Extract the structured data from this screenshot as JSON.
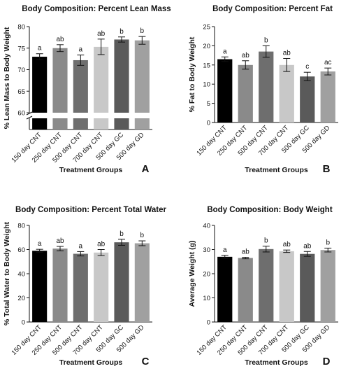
{
  "chart_data": [
    {
      "panel": "A",
      "type": "bar",
      "title": "Body Composition: Percent Lean Mass",
      "xlabel": "Treatment Groups",
      "ylabel": "% Lean Mass to Body Weight",
      "categories": [
        "150 day CNT",
        "250 day CNT",
        "500 day CNT",
        "700 day CNT",
        "500 day GC",
        "500 day GD"
      ],
      "values": [
        73.0,
        75.0,
        72.2,
        75.3,
        77.0,
        76.8
      ],
      "errors": [
        0.7,
        0.8,
        1.2,
        1.8,
        0.6,
        0.9
      ],
      "significance": [
        "a",
        "ab",
        "a",
        "ab",
        "b",
        "b"
      ],
      "colors": [
        "#000000",
        "#8a8a8a",
        "#6e6e6e",
        "#c8c8c8",
        "#5a5a5a",
        "#a0a0a0"
      ],
      "ylim": [
        60,
        80
      ],
      "ytick_labels": [
        "60",
        "65",
        "70",
        "75",
        "80"
      ],
      "axis_break": true,
      "grid": false
    },
    {
      "panel": "B",
      "type": "bar",
      "title": "Body Composition: Percent Fat",
      "xlabel": "Treatment Groups",
      "ylabel": "% Fat to Body Weight",
      "categories": [
        "150 day CNT",
        "250 day CNT",
        "500 day CNT",
        "700 day CNT",
        "500 day GC",
        "500 day GD"
      ],
      "values": [
        16.5,
        15.0,
        18.5,
        15.0,
        12.0,
        13.3
      ],
      "errors": [
        0.6,
        1.1,
        1.5,
        1.7,
        1.1,
        0.9
      ],
      "significance": [
        "a",
        "ab",
        "b",
        "ab",
        "c",
        "ac"
      ],
      "colors": [
        "#000000",
        "#8a8a8a",
        "#6e6e6e",
        "#c8c8c8",
        "#5a5a5a",
        "#a0a0a0"
      ],
      "ylim": [
        0,
        25
      ],
      "ytick_labels": [
        "0",
        "5",
        "10",
        "15",
        "20",
        "25"
      ],
      "grid": false
    },
    {
      "panel": "C",
      "type": "bar",
      "title": "Body Composition: Percent Total Water",
      "xlabel": "Treatment Groups",
      "ylabel": "% Total Water to Body Weight",
      "categories": [
        "150 day CNT",
        "250 day CNT",
        "500 day CNT",
        "700 day CNT",
        "500 day GC",
        "500 day GD"
      ],
      "values": [
        59.0,
        60.8,
        56.5,
        57.5,
        66.0,
        65.2
      ],
      "errors": [
        1.2,
        1.8,
        1.8,
        2.5,
        2.5,
        2.0
      ],
      "significance": [
        "a",
        "ab",
        "a",
        "ab",
        "b",
        "b"
      ],
      "colors": [
        "#000000",
        "#8a8a8a",
        "#6e6e6e",
        "#c8c8c8",
        "#5a5a5a",
        "#a0a0a0"
      ],
      "ylim": [
        0,
        80
      ],
      "ytick_labels": [
        "0",
        "20",
        "40",
        "60",
        "80"
      ],
      "grid": false
    },
    {
      "panel": "D",
      "type": "bar",
      "title": "Body Composition: Body Weight",
      "xlabel": "Treatment Groups",
      "ylabel": "Average Weight (g)",
      "categories": [
        "150 day CNT",
        "250 day CNT",
        "500 day CNT",
        "700 day CNT",
        "500 day GC",
        "500 day GD"
      ],
      "values": [
        27.0,
        26.5,
        30.2,
        29.3,
        28.2,
        29.8
      ],
      "errors": [
        0.6,
        0.3,
        1.2,
        0.5,
        1.0,
        0.8
      ],
      "significance": [
        "a",
        "ab",
        "b",
        "ab",
        "ab",
        "b"
      ],
      "colors": [
        "#000000",
        "#8a8a8a",
        "#6e6e6e",
        "#c8c8c8",
        "#5a5a5a",
        "#a0a0a0"
      ],
      "ylim": [
        0,
        40
      ],
      "ytick_labels": [
        "0",
        "10",
        "20",
        "30",
        "40"
      ],
      "grid": false
    }
  ]
}
